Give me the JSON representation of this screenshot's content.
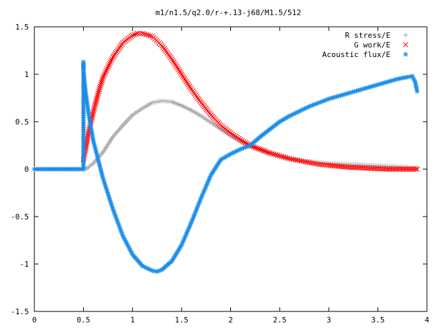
{
  "chart_data": {
    "type": "scatter",
    "title": "m1/n1.5/q2.0/r-+.13-j68/M1.5/512",
    "xlabel": "",
    "ylabel": "",
    "xlim": [
      0,
      4
    ],
    "ylim": [
      -1.5,
      1.5
    ],
    "x_ticks": [
      "0",
      "0.5",
      "1",
      "1.5",
      "2",
      "2.5",
      "3",
      "3.5",
      "4"
    ],
    "y_ticks": [
      "-1.5",
      "-1",
      "-0.5",
      "0",
      "0.5",
      "1",
      "1.5"
    ],
    "grid": false,
    "legend_position": "top-right",
    "series": [
      {
        "name": "R stress/E",
        "marker": "plus",
        "color": "#a0a0a0",
        "points": [
          [
            0.0,
            0.0
          ],
          [
            0.52,
            0.0
          ],
          [
            0.55,
            0.02
          ],
          [
            0.6,
            0.06
          ],
          [
            0.7,
            0.18
          ],
          [
            0.8,
            0.34
          ],
          [
            0.9,
            0.46
          ],
          [
            1.0,
            0.57
          ],
          [
            1.1,
            0.64
          ],
          [
            1.2,
            0.7
          ],
          [
            1.3,
            0.72
          ],
          [
            1.4,
            0.71
          ],
          [
            1.5,
            0.67
          ],
          [
            1.6,
            0.62
          ],
          [
            1.7,
            0.56
          ],
          [
            1.8,
            0.49
          ],
          [
            1.9,
            0.42
          ],
          [
            2.0,
            0.35
          ],
          [
            2.1,
            0.29
          ],
          [
            2.2,
            0.24
          ],
          [
            2.3,
            0.2
          ],
          [
            2.4,
            0.16
          ],
          [
            2.5,
            0.13
          ],
          [
            2.6,
            0.11
          ],
          [
            2.7,
            0.09
          ],
          [
            2.8,
            0.08
          ],
          [
            2.9,
            0.07
          ],
          [
            3.0,
            0.06
          ],
          [
            3.2,
            0.05
          ],
          [
            3.4,
            0.04
          ],
          [
            3.6,
            0.03
          ],
          [
            3.8,
            0.02
          ],
          [
            3.9,
            0.01
          ]
        ]
      },
      {
        "name": "G work/E",
        "marker": "cross",
        "color": "#ff0000",
        "points": [
          [
            0.5,
            0.1
          ],
          [
            0.52,
            0.2
          ],
          [
            0.55,
            0.38
          ],
          [
            0.6,
            0.6
          ],
          [
            0.65,
            0.8
          ],
          [
            0.7,
            0.97
          ],
          [
            0.8,
            1.18
          ],
          [
            0.9,
            1.33
          ],
          [
            1.0,
            1.41
          ],
          [
            1.05,
            1.43
          ],
          [
            1.1,
            1.43
          ],
          [
            1.2,
            1.4
          ],
          [
            1.3,
            1.3
          ],
          [
            1.4,
            1.16
          ],
          [
            1.5,
            1.0
          ],
          [
            1.6,
            0.84
          ],
          [
            1.7,
            0.7
          ],
          [
            1.8,
            0.57
          ],
          [
            1.9,
            0.46
          ],
          [
            2.0,
            0.38
          ],
          [
            2.1,
            0.31
          ],
          [
            2.2,
            0.25
          ],
          [
            2.3,
            0.21
          ],
          [
            2.4,
            0.17
          ],
          [
            2.5,
            0.14
          ],
          [
            2.6,
            0.11
          ],
          [
            2.7,
            0.09
          ],
          [
            2.8,
            0.07
          ],
          [
            2.9,
            0.05
          ],
          [
            3.0,
            0.04
          ],
          [
            3.2,
            0.02
          ],
          [
            3.4,
            0.01
          ],
          [
            3.6,
            0.0
          ],
          [
            3.9,
            0.0
          ]
        ]
      },
      {
        "name": "Acoustic flux/E",
        "marker": "star",
        "color": "#1a8ce8",
        "points": [
          [
            0.0,
            0.0
          ],
          [
            0.5,
            0.0
          ],
          [
            0.5,
            1.13
          ],
          [
            0.5,
            1.04
          ],
          [
            0.52,
            0.83
          ],
          [
            0.55,
            0.6
          ],
          [
            0.6,
            0.3
          ],
          [
            0.65,
            0.1
          ],
          [
            0.7,
            -0.1
          ],
          [
            0.8,
            -0.42
          ],
          [
            0.9,
            -0.7
          ],
          [
            1.0,
            -0.9
          ],
          [
            1.1,
            -1.02
          ],
          [
            1.2,
            -1.07
          ],
          [
            1.25,
            -1.08
          ],
          [
            1.3,
            -1.06
          ],
          [
            1.4,
            -0.97
          ],
          [
            1.5,
            -0.8
          ],
          [
            1.6,
            -0.56
          ],
          [
            1.7,
            -0.3
          ],
          [
            1.8,
            -0.06
          ],
          [
            1.9,
            0.1
          ],
          [
            2.0,
            0.16
          ],
          [
            2.1,
            0.21
          ],
          [
            2.2,
            0.25
          ],
          [
            2.3,
            0.34
          ],
          [
            2.4,
            0.42
          ],
          [
            2.5,
            0.5
          ],
          [
            2.6,
            0.56
          ],
          [
            2.7,
            0.61
          ],
          [
            2.8,
            0.66
          ],
          [
            2.9,
            0.7
          ],
          [
            3.0,
            0.74
          ],
          [
            3.1,
            0.77
          ],
          [
            3.2,
            0.8
          ],
          [
            3.3,
            0.83
          ],
          [
            3.4,
            0.86
          ],
          [
            3.5,
            0.89
          ],
          [
            3.6,
            0.92
          ],
          [
            3.7,
            0.95
          ],
          [
            3.8,
            0.97
          ],
          [
            3.85,
            0.98
          ],
          [
            3.88,
            0.92
          ],
          [
            3.9,
            0.82
          ]
        ]
      }
    ]
  }
}
